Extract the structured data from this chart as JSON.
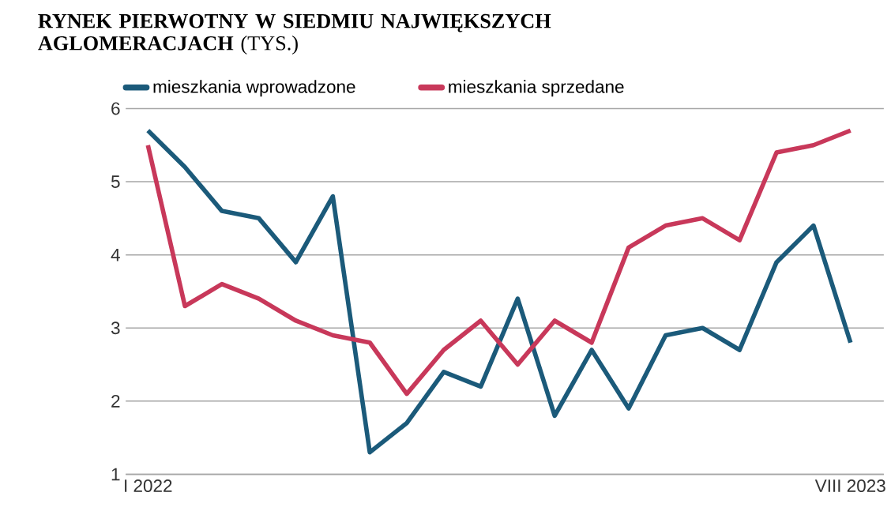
{
  "chart_data": {
    "type": "line",
    "title": "**RYNEK PIERWOTNY W SIEDMIU NAJWIĘKSZYCH AGLOMERACJACH** (TYS.)",
    "categories": [
      "I 2022",
      null,
      null,
      null,
      null,
      null,
      null,
      null,
      null,
      null,
      null,
      null,
      null,
      null,
      null,
      null,
      null,
      null,
      null,
      "VIII 2023"
    ],
    "series": [
      {
        "name": "mieszkania wprowadzone",
        "color": "#1b5a7a",
        "values": [
          5.7,
          5.2,
          4.6,
          4.5,
          3.9,
          4.8,
          1.3,
          1.7,
          2.4,
          2.2,
          3.4,
          1.8,
          2.7,
          1.9,
          2.9,
          3.0,
          2.7,
          3.9,
          4.4,
          2.8
        ]
      },
      {
        "name": "mieszkania sprzedane",
        "color": "#c8385a",
        "values": [
          5.5,
          3.3,
          3.6,
          3.4,
          3.1,
          2.9,
          2.8,
          2.1,
          2.7,
          3.1,
          2.5,
          3.1,
          2.8,
          4.1,
          4.4,
          4.5,
          4.2,
          5.4,
          5.5,
          5.7
        ]
      }
    ],
    "ylim": [
      1,
      6
    ],
    "yticks": [
      1,
      2,
      3,
      4,
      5,
      6
    ],
    "grid": "y",
    "legend": "top left",
    "marker": "none",
    "line_style": "solid"
  }
}
